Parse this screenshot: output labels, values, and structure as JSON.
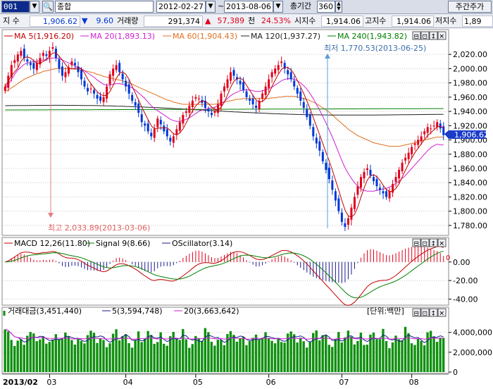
{
  "toolbar": {
    "code": "001",
    "name": "종합",
    "date_from": "2012-02-27",
    "tilde": "~",
    "date_to": "2013-08-06",
    "period_label": "총기간",
    "period_value": "360",
    "switch_button": "주간주가"
  },
  "info": {
    "index_label": "지 수",
    "index_value": "1,906.62",
    "change_symbol": "▼",
    "change_value": "9.60",
    "volume_label": "거래량",
    "volume_value": "291,374",
    "volume_symbol": "▲",
    "volume_change": "57,389",
    "volume_unit": "천",
    "volume_pct": "24.53%",
    "open_label": "시지수",
    "open_value": "1,914.06",
    "high_label": "고지수",
    "high_value": "1,914.06",
    "low_label": "저지수",
    "low_value": "1,89"
  },
  "colors": {
    "up": "#e0001a",
    "down": "#0036d6",
    "ma5": "#c00000",
    "ma20": "#d020d0",
    "ma60": "#e07020",
    "ma120": "#202020",
    "ma240": "#008000",
    "volume_bar": "#109010",
    "grid": "#c8c8c8"
  },
  "price_panel": {
    "legend": {
      "ma5": "MA 5(1,916.20)",
      "ma20": "MA 20(1,893.13)",
      "ma60": "MA 60(1,904.43)",
      "ma120": "MA 120(1,937.27)",
      "ma240": "MA 240(1,943.82)"
    },
    "low_annotation": "최저 1,770.53(2013-06-25)",
    "high_annotation": "최고 2,033.89(2013-03-06)",
    "current_tag": "1,906.62"
  },
  "macd_panel": {
    "legend": {
      "macd": "MACD 12,26(11.80)",
      "signal": "Signal 9(8.66)",
      "osc": "OScillator(3.14)"
    },
    "zero_marker": "0"
  },
  "volume_panel": {
    "legend": {
      "amount": "거래대금(3,451,440)",
      "ma5": "5(3,594,748)",
      "ma20": "20(3,663,642)"
    },
    "unit": "[단위:백만]"
  },
  "panel_controls": [
    "⊟",
    "⊡",
    "↕",
    "✕"
  ],
  "chart_data": {
    "type": "candlestick",
    "x_axis": {
      "year_label": "2013/02",
      "months": [
        "03",
        "04",
        "05",
        "06",
        "07",
        "08"
      ]
    },
    "price_axis": {
      "ticks": [
        "2,020.00",
        "2,000.00",
        "1,980.00",
        "1,960.00",
        "1,940.00",
        "1,920.00",
        "1,900.00",
        "1,880.00",
        "1,860.00",
        "1,840.00",
        "1,820.00",
        "1,800.00",
        "1,780.00"
      ],
      "ylim": [
        1770,
        2035
      ]
    },
    "macd_axis": {
      "ticks": [
        "0.00",
        "-20.00",
        "-40.00"
      ],
      "ylim": [
        -45,
        15
      ]
    },
    "volume_axis": {
      "ticks": [
        "4,000,000",
        "2,000,000",
        "0"
      ],
      "ylim": [
        0,
        5400000
      ]
    },
    "close_series": [
      1975,
      1990,
      2005,
      2012,
      2020,
      2025,
      2015,
      2010,
      2005,
      2000,
      2008,
      2015,
      2022,
      2018,
      2025,
      2030,
      2015,
      2000,
      1990,
      1995,
      2002,
      2010,
      2005,
      1995,
      1985,
      1975,
      1968,
      1972,
      1965,
      1958,
      1955,
      1960,
      1975,
      1992,
      2000,
      2005,
      1995,
      1985,
      1975,
      1965,
      1955,
      1948,
      1938,
      1925,
      1920,
      1912,
      1905,
      1915,
      1930,
      1922,
      1912,
      1905,
      1898,
      1905,
      1915,
      1925,
      1935,
      1940,
      1948,
      1955,
      1960,
      1958,
      1952,
      1945,
      1940,
      1935,
      1940,
      1950,
      1965,
      1975,
      1985,
      1995,
      1990,
      1985,
      1978,
      1970,
      1960,
      1955,
      1950,
      1945,
      1955,
      1965,
      1975,
      1985,
      1995,
      2000,
      2005,
      2010,
      2000,
      1992,
      1985,
      1975,
      1965,
      1955,
      1945,
      1932,
      1920,
      1905,
      1895,
      1885,
      1870,
      1858,
      1845,
      1830,
      1815,
      1800,
      1785,
      1778,
      1790,
      1805,
      1820,
      1835,
      1848,
      1855,
      1860,
      1850,
      1842,
      1835,
      1830,
      1825,
      1820,
      1828,
      1838,
      1848,
      1858,
      1868,
      1875,
      1882,
      1890,
      1895,
      1900,
      1905,
      1912,
      1918,
      1916,
      1920,
      1925,
      1916,
      1906.62
    ],
    "ma20_series": [
      1972,
      1978,
      1985,
      1992,
      1998,
      2002,
      2006,
      2008,
      2009,
      2010,
      2010,
      2011,
      2012,
      2013,
      2014,
      2015,
      2015,
      2014,
      2012,
      2010,
      2008,
      2006,
      2004,
      2002,
      2000,
      1997,
      1994,
      1991,
      1988,
      1984,
      1981,
      1978,
      1977,
      1977,
      1978,
      1979,
      1979,
      1978,
      1977,
      1975,
      1973,
      1970,
      1966,
      1962,
      1958,
      1953,
      1948,
      1944,
      1941,
      1938,
      1935,
      1932,
      1929,
      1927,
      1926,
      1926,
      1927,
      1929,
      1931,
      1934,
      1937,
      1940,
      1942,
      1943,
      1944,
      1945,
      1946,
      1948,
      1951,
      1954,
      1958,
      1962,
      1965,
      1967,
      1969,
      1970,
      1970,
      1970,
      1969,
      1968,
      1968,
      1969,
      1970,
      1972,
      1974,
      1977,
      1980,
      1983,
      1985,
      1986,
      1986,
      1985,
      1983,
      1980,
      1976,
      1971,
      1965,
      1958,
      1950,
      1942,
      1933,
      1924,
      1914,
      1904,
      1893,
      1882,
      1871,
      1861,
      1853,
      1846,
      1840,
      1835,
      1831,
      1829,
      1828,
      1828,
      1828,
      1829,
      1830,
      1831,
      1832,
      1834,
      1836,
      1839,
      1842,
      1846,
      1850,
      1855,
      1860,
      1865,
      1870,
      1875,
      1880,
      1885,
      1889,
      1892,
      1894,
      1893,
      1893
    ],
    "ma60_series": [
      1968,
      1970,
      1973,
      1976,
      1979,
      1982,
      1985,
      1987,
      1989,
      1991,
      1993,
      1994,
      1996,
      1997,
      1998,
      1999,
      2000,
      2000,
      2000,
      2000,
      2000,
      2000,
      1999,
      1999,
      1998,
      1997,
      1996,
      1995,
      1994,
      1992,
      1991,
      1989,
      1988,
      1987,
      1986,
      1985,
      1984,
      1983,
      1981,
      1980,
      1978,
      1976,
      1974,
      1972,
      1970,
      1968,
      1966,
      1964,
      1962,
      1960,
      1958,
      1956,
      1955,
      1953,
      1952,
      1951,
      1950,
      1950,
      1950,
      1950,
      1950,
      1950,
      1950,
      1950,
      1950,
      1950,
      1950,
      1951,
      1952,
      1953,
      1954,
      1955,
      1956,
      1957,
      1957,
      1958,
      1958,
      1958,
      1958,
      1958,
      1958,
      1958,
      1958,
      1958,
      1959,
      1959,
      1960,
      1960,
      1961,
      1961,
      1961,
      1961,
      1960,
      1959,
      1958,
      1957,
      1955,
      1953,
      1951,
      1948,
      1945,
      1942,
      1939,
      1935,
      1931,
      1927,
      1923,
      1919,
      1915,
      1912,
      1909,
      1906,
      1904,
      1902,
      1900,
      1898,
      1896,
      1895,
      1894,
      1893,
      1892,
      1891,
      1891,
      1891,
      1891,
      1892,
      1893,
      1894,
      1895,
      1896,
      1898,
      1899,
      1900,
      1901,
      1902,
      1903,
      1904,
      1904,
      1904
    ],
    "macd": {
      "last": 11.8,
      "signal_last": 8.66,
      "osc_last": 3.14
    },
    "volume_last": 3451440,
    "volume_ma5_last": 3594748,
    "volume_ma20_last": 3663642
  }
}
